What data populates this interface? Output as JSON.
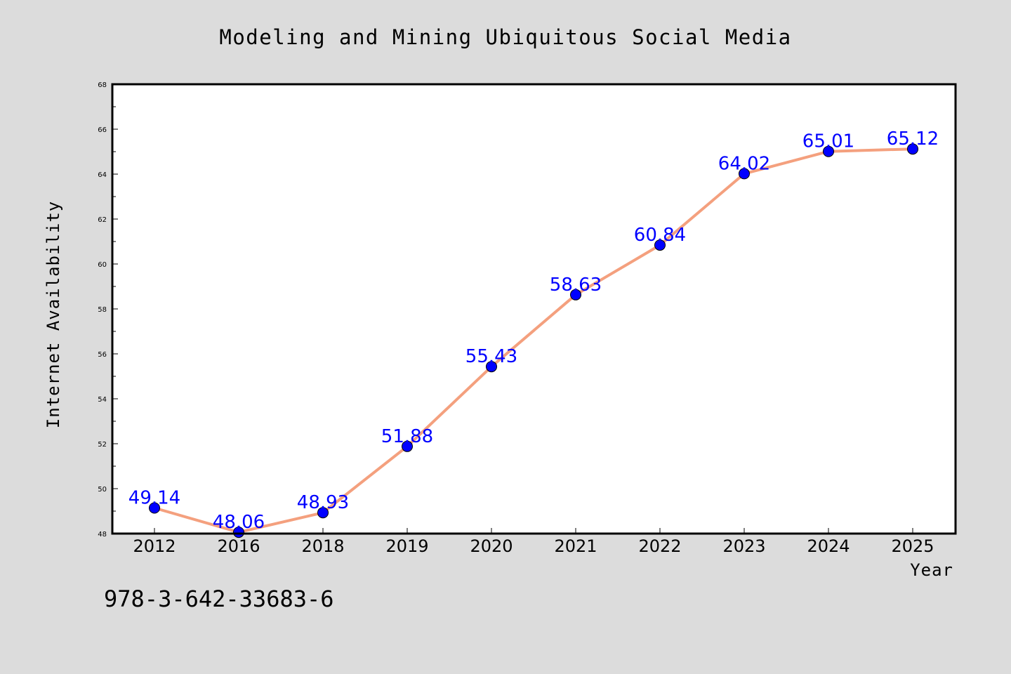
{
  "chart_data": {
    "type": "line",
    "title": "Modeling and Mining Ubiquitous Social Media",
    "xlabel": "Year",
    "ylabel": "Internet Availability",
    "categories": [
      "2012",
      "2016",
      "2018",
      "2019",
      "2020",
      "2021",
      "2022",
      "2023",
      "2024",
      "2025"
    ],
    "values": [
      49.14,
      48.06,
      48.93,
      51.88,
      55.43,
      58.63,
      60.84,
      64.02,
      65.01,
      65.12
    ],
    "data_labels": [
      "49.14",
      "48.06",
      "48.93",
      "51.88",
      "55.43",
      "58.63",
      "60.84",
      "64.02",
      "65.01",
      "65.12"
    ],
    "ylim": [
      48,
      68
    ],
    "yticks": [
      "48",
      "50",
      "52",
      "54",
      "56",
      "58",
      "60",
      "62",
      "64",
      "66",
      "68"
    ],
    "grid": false,
    "legend": "none",
    "colors": {
      "line": "#f4a07e",
      "marker": "#0000ff",
      "data_label": "#0000ff",
      "background": "#dcdcdc",
      "plot_background": "#ffffff"
    }
  },
  "footer": {
    "isbn": "978-3-642-33683-6"
  }
}
